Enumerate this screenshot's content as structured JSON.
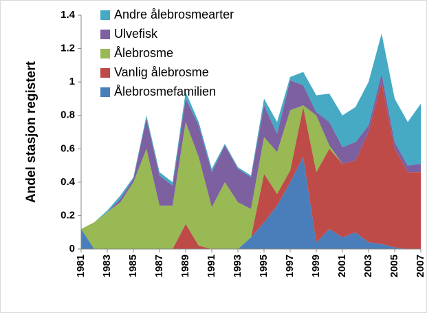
{
  "chart_data": {
    "type": "stacked-area",
    "y_label": "Andel stasjon registert",
    "x": [
      1981,
      1982,
      1983,
      1984,
      1985,
      1986,
      1987,
      1988,
      1989,
      1990,
      1991,
      1992,
      1993,
      1994,
      1995,
      1996,
      1997,
      1998,
      1999,
      2000,
      2001,
      2002,
      2003,
      2004,
      2005,
      2006,
      2007
    ],
    "xlim": [
      1981,
      2007
    ],
    "xticks": [
      1981,
      1983,
      1985,
      1987,
      1989,
      1991,
      1993,
      1995,
      1997,
      1999,
      2001,
      2003,
      2005,
      2007
    ],
    "ylim": [
      0,
      1.4
    ],
    "yticks": [
      0,
      0.2,
      0.4,
      0.6,
      0.8,
      1,
      1.2,
      1.4
    ],
    "grid": false,
    "legend": "upper-left",
    "series": [
      {
        "name": "Ålebrosmefamilien",
        "color": "#4a7ebb",
        "values": [
          0.12,
          0,
          0,
          0,
          0,
          0,
          0,
          0,
          0,
          0,
          0,
          0,
          0,
          0.07,
          0.16,
          0.26,
          0.4,
          0.55,
          0.04,
          0.12,
          0.07,
          0.1,
          0.04,
          0.03,
          0.01,
          0,
          0
        ]
      },
      {
        "name": "Vanlig ålebrosme",
        "color": "#be4b48",
        "values": [
          0,
          0,
          0,
          0,
          0,
          0,
          0,
          0,
          0.15,
          0.02,
          0,
          0,
          0,
          0,
          0.29,
          0.07,
          0.07,
          0.3,
          0.42,
          0.48,
          0.44,
          0.43,
          0.66,
          0.97,
          0.59,
          0.46,
          0.46
        ]
      },
      {
        "name": "Ålebrosme",
        "color": "#98b954",
        "values": [
          0,
          0.16,
          0.22,
          0.28,
          0.4,
          0.6,
          0.26,
          0.26,
          0.61,
          0.53,
          0.25,
          0.4,
          0.28,
          0.17,
          0.22,
          0.25,
          0.36,
          0.01,
          0.34,
          0.02,
          0,
          0,
          0,
          0,
          0,
          0,
          0
        ]
      },
      {
        "name": "Ulvefisk",
        "color": "#7d60a0",
        "values": [
          0,
          0,
          0,
          0.02,
          0.02,
          0.18,
          0.18,
          0.12,
          0.14,
          0.19,
          0.21,
          0.22,
          0.2,
          0.19,
          0.19,
          0.11,
          0.18,
          0.12,
          0.02,
          0.14,
          0.1,
          0.11,
          0.04,
          0.05,
          0.04,
          0.04,
          0.05
        ]
      },
      {
        "name": "Andre ålebrosmearter",
        "color": "#46aac5",
        "values": [
          0,
          0,
          0.01,
          0.02,
          0.01,
          0.02,
          0.02,
          0.02,
          0.04,
          0.02,
          0.02,
          0.01,
          0.01,
          0.01,
          0.04,
          0.07,
          0.02,
          0.08,
          0.1,
          0.17,
          0.19,
          0.21,
          0.26,
          0.24,
          0.26,
          0.26,
          0.36
        ]
      }
    ]
  }
}
